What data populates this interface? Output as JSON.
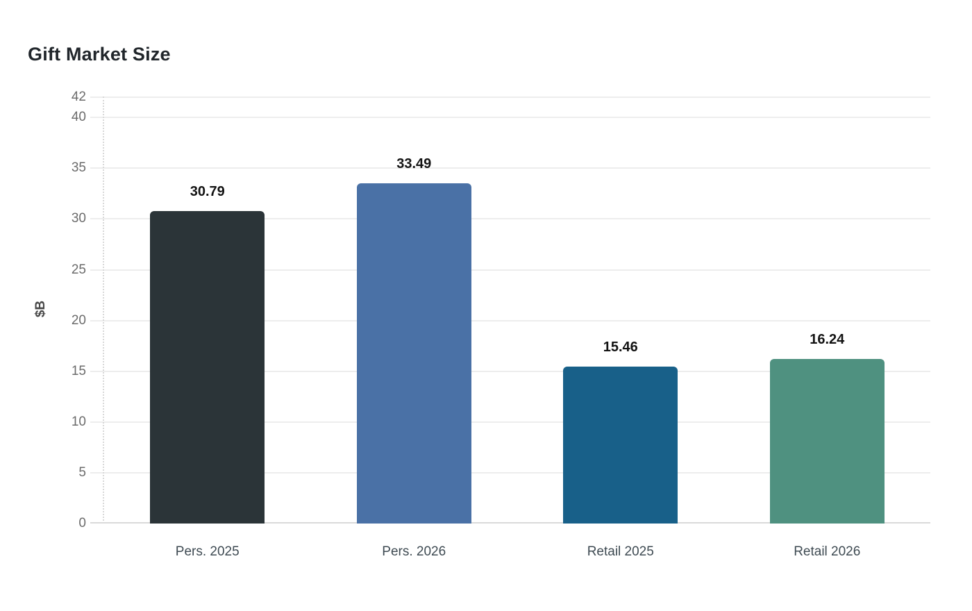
{
  "header": {
    "title": "Gift Market Size"
  },
  "chart_data": {
    "type": "bar",
    "title": "Gift Market Size",
    "categories": [
      "Pers. 2025",
      "Pers. 2026",
      "Retail 2025",
      "Retail 2026"
    ],
    "values": [
      30.79,
      33.49,
      15.46,
      16.24
    ],
    "value_labels": [
      "30.79",
      "33.49",
      "15.46",
      "16.24"
    ],
    "bar_colors": [
      "#2b3438",
      "#4a71a6",
      "#186089",
      "#4f9180"
    ],
    "xlabel": "",
    "ylabel": "$B",
    "ylim": [
      0,
      42
    ],
    "yticks": [
      0,
      5,
      10,
      15,
      20,
      25,
      30,
      35,
      40,
      42
    ],
    "grid": "horizontal",
    "legend": "none",
    "style": {
      "background": "#ffffff",
      "title_color": "#21262b",
      "grid_color": "#ededed",
      "axis_color": "#d9d9d9",
      "tick_label_color": "#6b6b6b",
      "x_label_color": "#3e4a52",
      "value_label_color": "#121212",
      "y_axis_title_color": "#474747"
    }
  }
}
